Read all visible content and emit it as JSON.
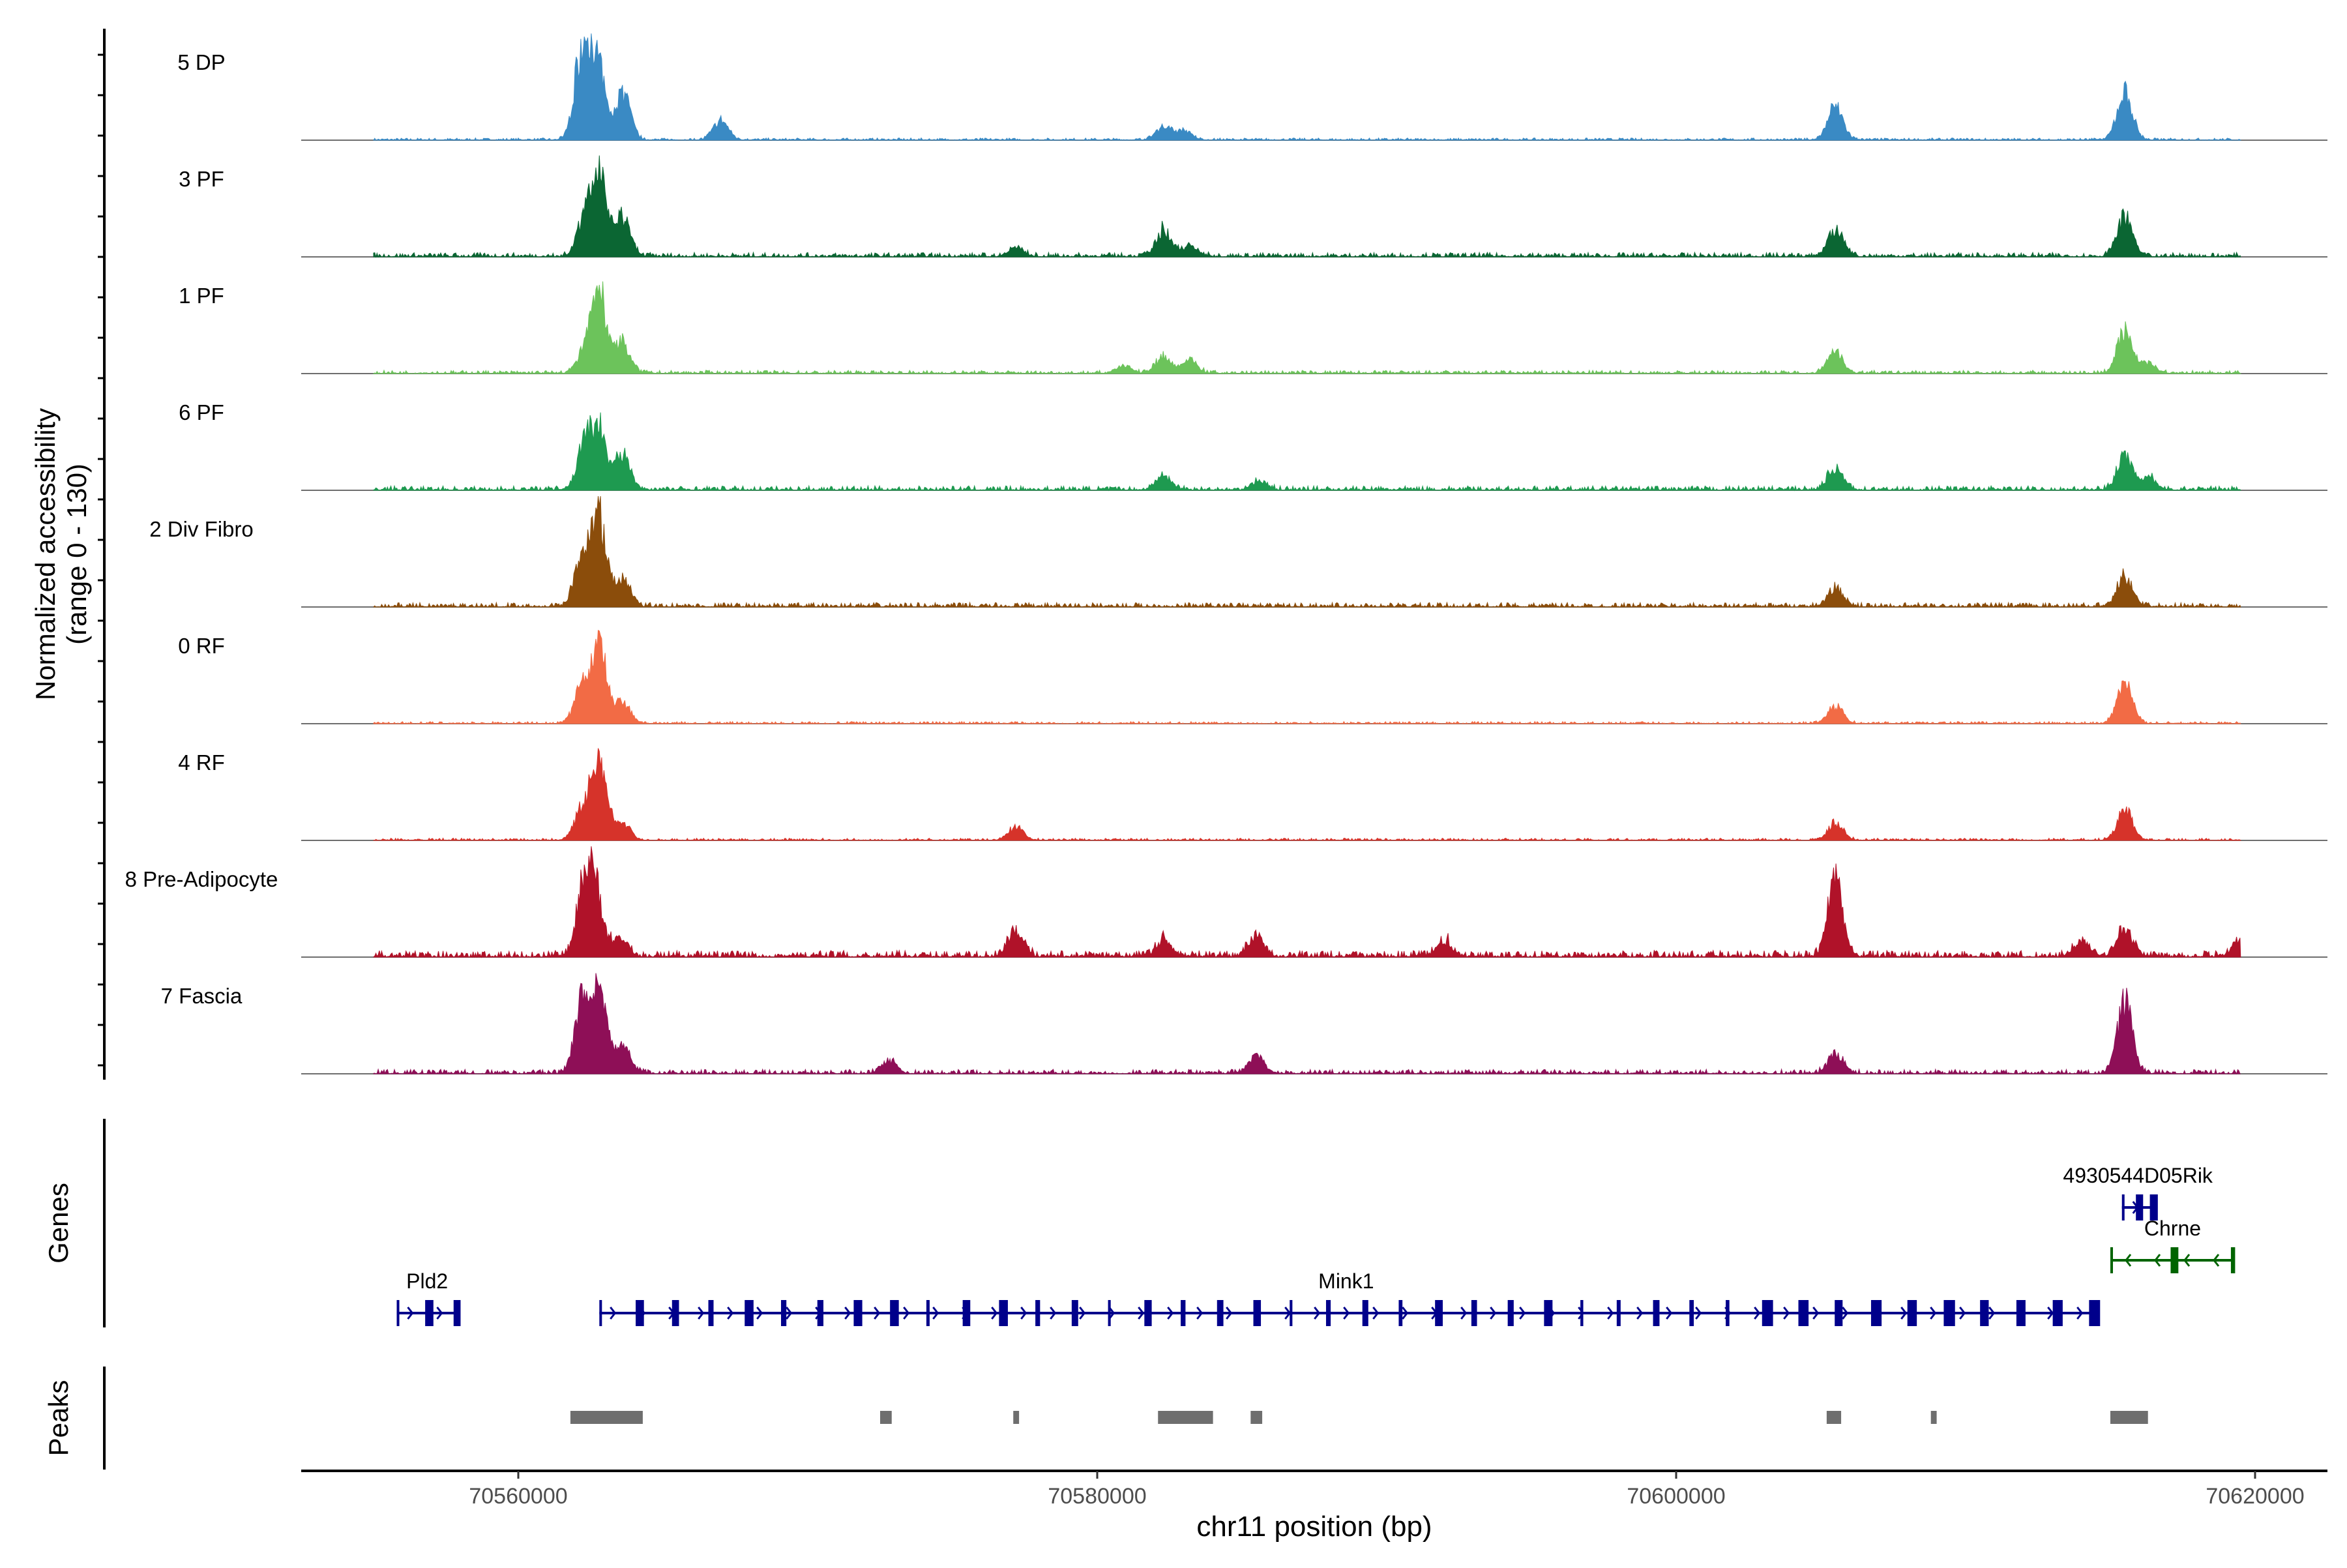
{
  "chart_data": {
    "type": "coverage-track",
    "chromosome": "chr11",
    "xlim": [
      70552500,
      70622500
    ],
    "xlabel": "chr11 position (bp)",
    "x_ticks": [
      {
        "value": 70560000,
        "label": "70560000"
      },
      {
        "value": 70580000,
        "label": "70580000"
      },
      {
        "value": 70600000,
        "label": "70600000"
      },
      {
        "value": 70620000,
        "label": "70620000"
      }
    ],
    "ylabel_line1": "Normalized accessibility",
    "ylabel_line2": "(range 0 - 130)",
    "ylim": [
      0,
      130
    ],
    "genes_label": "Genes",
    "peaks_label": "Peaks",
    "tracks": [
      {
        "name": "5 DP",
        "color": "#3a8ac4",
        "baseline": 2,
        "peaks": [
          [
            70562200,
            100
          ],
          [
            70562700,
            90
          ],
          [
            70563600,
            55
          ],
          [
            70567000,
            22
          ],
          [
            70582300,
            16
          ],
          [
            70583000,
            10
          ],
          [
            70605500,
            38
          ],
          [
            70615500,
            55
          ]
        ]
      },
      {
        "name": "3 PF",
        "color": "#0b6633",
        "baseline": 4,
        "peaks": [
          [
            70562300,
            45
          ],
          [
            70562800,
            90
          ],
          [
            70563600,
            45
          ],
          [
            70577200,
            10
          ],
          [
            70582300,
            30
          ],
          [
            70583200,
            12
          ],
          [
            70605500,
            30
          ],
          [
            70615500,
            45
          ]
        ]
      },
      {
        "name": "1 PF",
        "color": "#6cc35b",
        "baseline": 3,
        "peaks": [
          [
            70562300,
            25
          ],
          [
            70562800,
            90
          ],
          [
            70563600,
            35
          ],
          [
            70580900,
            8
          ],
          [
            70582300,
            20
          ],
          [
            70583200,
            15
          ],
          [
            70605500,
            25
          ],
          [
            70615500,
            48
          ],
          [
            70616300,
            12
          ]
        ]
      },
      {
        "name": "6 PF",
        "color": "#1e9a50",
        "baseline": 4,
        "peaks": [
          [
            70562300,
            55
          ],
          [
            70562800,
            65
          ],
          [
            70563600,
            40
          ],
          [
            70582300,
            16
          ],
          [
            70585600,
            10
          ],
          [
            70605500,
            25
          ],
          [
            70615500,
            40
          ],
          [
            70616300,
            15
          ]
        ]
      },
      {
        "name": "2 Div Fibro",
        "color": "#8b4d0b",
        "baseline": 4,
        "peaks": [
          [
            70562200,
            60
          ],
          [
            70562800,
            100
          ],
          [
            70563600,
            30
          ],
          [
            70605500,
            20
          ],
          [
            70615500,
            35
          ]
        ]
      },
      {
        "name": "0 RF",
        "color": "#f26b45",
        "baseline": 2,
        "peaks": [
          [
            70562200,
            40
          ],
          [
            70562800,
            90
          ],
          [
            70563600,
            25
          ],
          [
            70605500,
            20
          ],
          [
            70615500,
            45
          ]
        ]
      },
      {
        "name": "4 RF",
        "color": "#d6332a",
        "baseline": 2,
        "peaks": [
          [
            70562200,
            35
          ],
          [
            70562800,
            95
          ],
          [
            70563600,
            20
          ],
          [
            70577200,
            15
          ],
          [
            70605500,
            20
          ],
          [
            70615500,
            35
          ]
        ]
      },
      {
        "name": "8 Pre-Adipocyte",
        "color": "#b01229",
        "baseline": 6,
        "peaks": [
          [
            70562300,
            80
          ],
          [
            70562700,
            60
          ],
          [
            70563500,
            20
          ],
          [
            70577200,
            30
          ],
          [
            70582300,
            20
          ],
          [
            70585500,
            25
          ],
          [
            70592000,
            18
          ],
          [
            70605500,
            85
          ],
          [
            70614000,
            18
          ],
          [
            70615500,
            30
          ],
          [
            70619500,
            20
          ]
        ]
      },
      {
        "name": "7 Fascia",
        "color": "#8e0f57",
        "baseline": 4,
        "peaks": [
          [
            70562200,
            80
          ],
          [
            70562800,
            95
          ],
          [
            70563600,
            30
          ],
          [
            70572800,
            15
          ],
          [
            70585500,
            20
          ],
          [
            70605500,
            22
          ],
          [
            70615500,
            80
          ]
        ]
      }
    ],
    "genes": [
      {
        "name": "Pld2",
        "color": "#00008b",
        "start": 70555800,
        "end": 70557900,
        "strand": "+",
        "row": 2
      },
      {
        "name": "Mink1",
        "color": "#00008b",
        "start": 70562800,
        "end": 70614400,
        "strand": "+",
        "row": 2
      },
      {
        "name": "Chrne",
        "color": "#006400",
        "start": 70615000,
        "end": 70619300,
        "strand": "-",
        "row": 1
      },
      {
        "name": "4930544D05Rik",
        "color": "#00008b",
        "start": 70615400,
        "end": 70616500,
        "strand": "+",
        "row": 0
      }
    ],
    "peak_regions": [
      [
        70561800,
        70564300
      ],
      [
        70572500,
        70572900
      ],
      [
        70577100,
        70577300
      ],
      [
        70582100,
        70584000
      ],
      [
        70585300,
        70585700
      ],
      [
        70605200,
        70605700
      ],
      [
        70608800,
        70609000
      ],
      [
        70615000,
        70616300
      ]
    ],
    "peak_color": "#6e6e6e"
  }
}
